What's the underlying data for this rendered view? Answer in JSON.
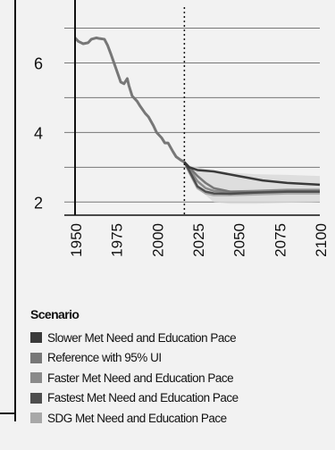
{
  "chart_data": {
    "type": "line",
    "xlabel": "",
    "ylabel": "",
    "xlim": [
      1950,
      2100
    ],
    "ylim": [
      1.7,
      7.5
    ],
    "x_ticks": [
      "1950",
      "1975",
      "2000",
      "2025",
      "2050",
      "2075",
      "2100"
    ],
    "y_ticks": [
      "2",
      "4",
      "6"
    ],
    "forecast_start": 2017,
    "grid": true,
    "legend_position": "bottom",
    "legend_title": "Scenario",
    "history": {
      "x": [
        1950,
        1952,
        1955,
        1958,
        1960,
        1963,
        1965,
        1968,
        1970,
        1972,
        1975,
        1978,
        1980,
        1982,
        1983,
        1985,
        1988,
        1990,
        1993,
        1995,
        1998,
        2000,
        2003,
        2005,
        2007,
        2010,
        2012,
        2015,
        2017
      ],
      "values": [
        6.72,
        6.62,
        6.55,
        6.58,
        6.68,
        6.72,
        6.7,
        6.68,
        6.5,
        6.25,
        5.85,
        5.45,
        5.4,
        5.55,
        5.35,
        5.05,
        4.9,
        4.75,
        4.55,
        4.45,
        4.2,
        4.0,
        3.85,
        3.7,
        3.7,
        3.45,
        3.3,
        3.2,
        3.15
      ]
    },
    "series": [
      {
        "name": "Slower Met Need and Education  Pace",
        "color": "#3a3a3a",
        "x": [
          2017,
          2020,
          2025,
          2035,
          2050,
          2065,
          2080,
          2100
        ],
        "values": [
          3.15,
          3.0,
          2.92,
          2.88,
          2.75,
          2.62,
          2.55,
          2.5
        ]
      },
      {
        "name": "Reference with 95% UI",
        "color": "#777777",
        "x": [
          2017,
          2020,
          2025,
          2030,
          2035,
          2045,
          2060,
          2080,
          2100
        ],
        "values": [
          3.15,
          3.0,
          2.75,
          2.55,
          2.4,
          2.3,
          2.28,
          2.3,
          2.3
        ],
        "lower": [
          3.15,
          2.95,
          2.5,
          2.2,
          2.0,
          1.95,
          1.95,
          1.98,
          2.0
        ],
        "upper": [
          3.15,
          3.05,
          3.0,
          2.95,
          2.9,
          2.85,
          2.8,
          2.78,
          2.75
        ]
      },
      {
        "name": "Faster Met Need and Education Pace",
        "color": "#8a8a8a",
        "x": [
          2017,
          2020,
          2025,
          2030,
          2035,
          2045,
          2060,
          2080,
          2100
        ],
        "values": [
          3.15,
          2.95,
          2.6,
          2.4,
          2.32,
          2.3,
          2.32,
          2.35,
          2.35
        ]
      },
      {
        "name": "Fastest Met Need and Education Pace",
        "color": "#4e4e4e",
        "x": [
          2017,
          2020,
          2025,
          2030,
          2035,
          2045,
          2060,
          2080,
          2100
        ],
        "values": [
          3.15,
          2.9,
          2.45,
          2.3,
          2.25,
          2.24,
          2.27,
          2.3,
          2.3
        ]
      },
      {
        "name": "SDG Met Need and Education Pace",
        "color": "#a8a8a8",
        "x": [
          2017,
          2020,
          2025,
          2030,
          2035,
          2045,
          2060,
          2080,
          2100
        ],
        "values": [
          3.15,
          2.85,
          2.4,
          2.25,
          2.2,
          2.2,
          2.22,
          2.25,
          2.25
        ]
      }
    ],
    "colors": {
      "axis": "#111111",
      "grid": "#777777",
      "history": "#777777",
      "band": "#d8d8d8",
      "background": "#f2f2f2"
    }
  }
}
